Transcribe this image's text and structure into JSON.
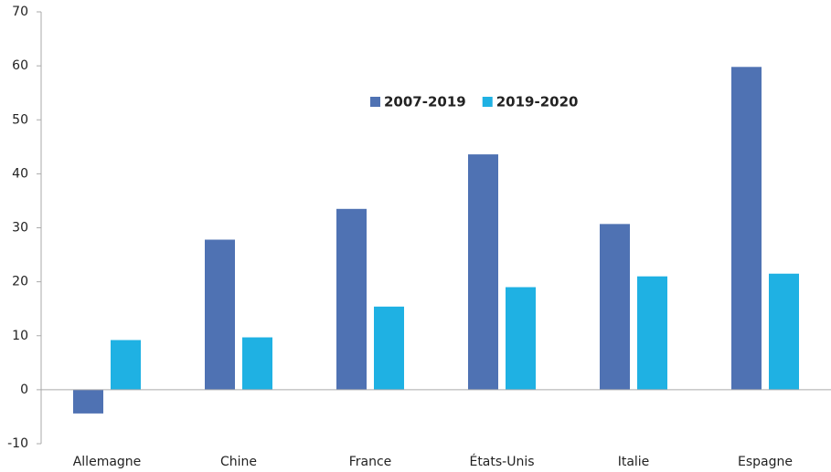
{
  "chart_data": {
    "type": "bar",
    "categories": [
      "Allemagne",
      "Chine",
      "France",
      "États-Unis",
      "Italie",
      "Espagne"
    ],
    "series": [
      {
        "name": "2007-2019",
        "color": "#4f72b3",
        "values": [
          -4.4,
          27.8,
          33.5,
          43.6,
          30.7,
          59.8
        ]
      },
      {
        "name": "2019-2020",
        "color": "#1fb1e3",
        "values": [
          9.2,
          9.7,
          15.4,
          19.0,
          21.0,
          21.5
        ]
      }
    ],
    "ylim": [
      -10,
      70
    ],
    "yticks": [
      -10,
      0,
      10,
      20,
      30,
      40,
      50,
      60,
      70
    ],
    "grid": false
  }
}
